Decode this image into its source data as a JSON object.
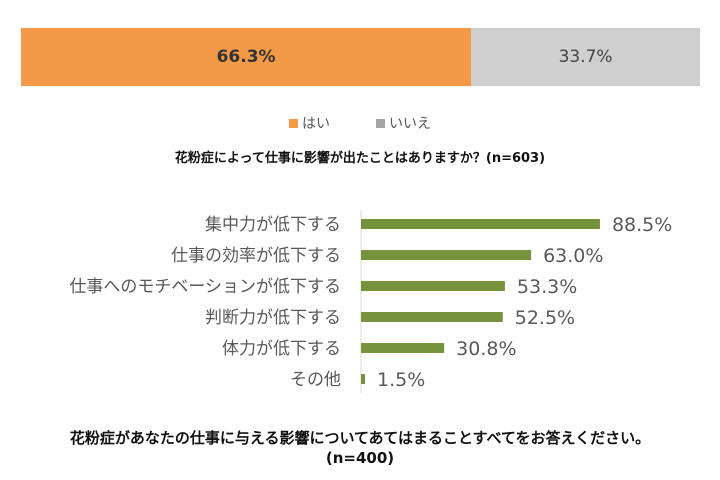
{
  "chart_data": [
    {
      "type": "bar",
      "orientation": "horizontal-stacked",
      "title": "花粉症によって仕事に影響が出たことはありますか？(n=603)",
      "series": [
        {
          "name": "はい",
          "values": [
            66.3
          ],
          "label": "66.3%",
          "color": "#f29a47"
        },
        {
          "name": "いいえ",
          "values": [
            33.7
          ],
          "label": "33.7%",
          "color": "#cfcfcf"
        }
      ],
      "unit": "%",
      "legend": "bottom"
    },
    {
      "type": "bar",
      "orientation": "horizontal",
      "title": "花粉症があなたの仕事に与える影響についてあてはまることすべてをお答えください。",
      "subtitle": "(n=400)",
      "categories": [
        "集中力が低下する",
        "仕事の効率が低下する",
        "仕事へのモチベーションが低下する",
        "判断力が低下する",
        "体力が低下する",
        "その他"
      ],
      "values": [
        88.5,
        63.0,
        53.3,
        52.5,
        30.8,
        1.5
      ],
      "value_labels": [
        "88.5%",
        "63.0%",
        "53.3%",
        "52.5%",
        "30.8%",
        "1.5%"
      ],
      "unit": "%",
      "xlim": [
        0,
        100
      ],
      "color": "#76923c",
      "grid": false
    }
  ]
}
